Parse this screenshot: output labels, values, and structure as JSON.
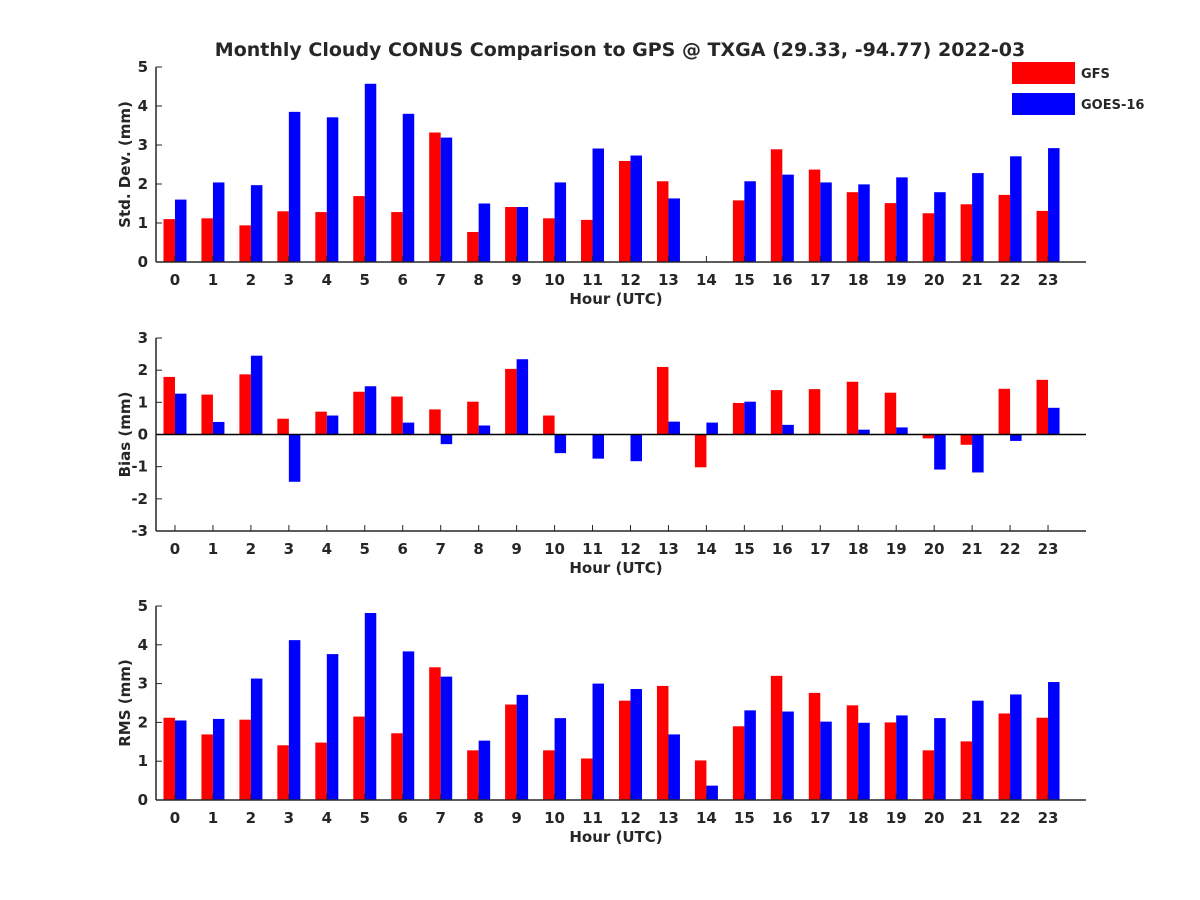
{
  "chart_data": {
    "title": "Monthly Cloudy CONUS Comparison to GPS @ TXGA (29.33, -94.77) 2022-03",
    "legend": {
      "placement": "top-right",
      "entries": [
        {
          "label": "GFS",
          "color": "#ff0000"
        },
        {
          "label": "GOES-16",
          "color": "#0000ff"
        }
      ]
    },
    "panels": [
      {
        "type": "bar",
        "xlabel": "Hour (UTC)",
        "ylabel": "Std. Dev. (mm)",
        "ylim": [
          0,
          5
        ],
        "yticks": [
          0,
          1,
          2,
          3,
          4,
          5
        ],
        "categories": [
          "0",
          "1",
          "2",
          "3",
          "4",
          "5",
          "6",
          "7",
          "8",
          "9",
          "10",
          "11",
          "12",
          "13",
          "14",
          "15",
          "16",
          "17",
          "18",
          "19",
          "20",
          "21",
          "22",
          "23"
        ],
        "series": [
          {
            "name": "GFS",
            "color": "#ff0000",
            "values": [
              1.1,
              1.12,
              0.94,
              1.3,
              1.28,
              1.69,
              1.28,
              3.32,
              0.77,
              1.41,
              1.12,
              1.08,
              2.59,
              2.07,
              0,
              1.58,
              2.89,
              2.37,
              1.79,
              1.51,
              1.25,
              1.48,
              1.72,
              1.31
            ]
          },
          {
            "name": "GOES-16",
            "color": "#0000ff",
            "values": [
              1.6,
              2.04,
              1.97,
              3.85,
              3.71,
              4.57,
              3.8,
              3.19,
              1.5,
              1.41,
              2.04,
              2.91,
              2.73,
              1.63,
              0,
              2.07,
              2.24,
              2.04,
              1.99,
              2.17,
              1.79,
              2.28,
              2.71,
              2.92
            ]
          }
        ]
      },
      {
        "type": "bar",
        "xlabel": "Hour (UTC)",
        "ylabel": "Bias (mm)",
        "ylim": [
          -3,
          3
        ],
        "yticks": [
          -3,
          -2,
          -1,
          0,
          1,
          2,
          3
        ],
        "categories": [
          "0",
          "1",
          "2",
          "3",
          "4",
          "5",
          "6",
          "7",
          "8",
          "9",
          "10",
          "11",
          "12",
          "13",
          "14",
          "15",
          "16",
          "17",
          "18",
          "19",
          "20",
          "21",
          "22",
          "23"
        ],
        "series": [
          {
            "name": "GFS",
            "color": "#ff0000",
            "values": [
              1.79,
              1.24,
              1.87,
              0.49,
              0.71,
              1.33,
              1.18,
              0.78,
              1.02,
              2.04,
              0.59,
              0,
              0,
              2.1,
              -1.02,
              0.98,
              1.38,
              1.41,
              1.64,
              1.3,
              -0.12,
              -0.32,
              1.42,
              1.7
            ]
          },
          {
            "name": "GOES-16",
            "color": "#0000ff",
            "values": [
              1.27,
              0.39,
              2.45,
              -1.47,
              0.59,
              1.5,
              0.37,
              -0.3,
              0.28,
              2.34,
              -0.58,
              -0.75,
              -0.83,
              0.4,
              0.37,
              1.02,
              0.3,
              0,
              0.15,
              0.22,
              -1.09,
              -1.18,
              -0.2,
              0.83
            ]
          }
        ]
      },
      {
        "type": "bar",
        "xlabel": "Hour (UTC)",
        "ylabel": "RMS (mm)",
        "ylim": [
          0,
          5
        ],
        "yticks": [
          0,
          1,
          2,
          3,
          4,
          5
        ],
        "categories": [
          "0",
          "1",
          "2",
          "3",
          "4",
          "5",
          "6",
          "7",
          "8",
          "9",
          "10",
          "11",
          "12",
          "13",
          "14",
          "15",
          "16",
          "17",
          "18",
          "19",
          "20",
          "21",
          "22",
          "23"
        ],
        "series": [
          {
            "name": "GFS",
            "color": "#ff0000",
            "values": [
              2.12,
              1.69,
              2.07,
              1.41,
              1.48,
              2.15,
              1.72,
              3.42,
              1.28,
              2.46,
              1.28,
              1.07,
              2.56,
              2.94,
              1.02,
              1.9,
              3.2,
              2.76,
              2.44,
              2.0,
              1.28,
              1.51,
              2.23,
              2.12
            ]
          },
          {
            "name": "GOES-16",
            "color": "#0000ff",
            "values": [
              2.05,
              2.09,
              3.13,
              4.12,
              3.76,
              4.82,
              3.83,
              3.18,
              1.53,
              2.71,
              2.11,
              3.0,
              2.86,
              1.69,
              0.37,
              2.31,
              2.28,
              2.02,
              1.99,
              2.18,
              2.11,
              2.56,
              2.72,
              3.04
            ]
          }
        ]
      }
    ]
  }
}
